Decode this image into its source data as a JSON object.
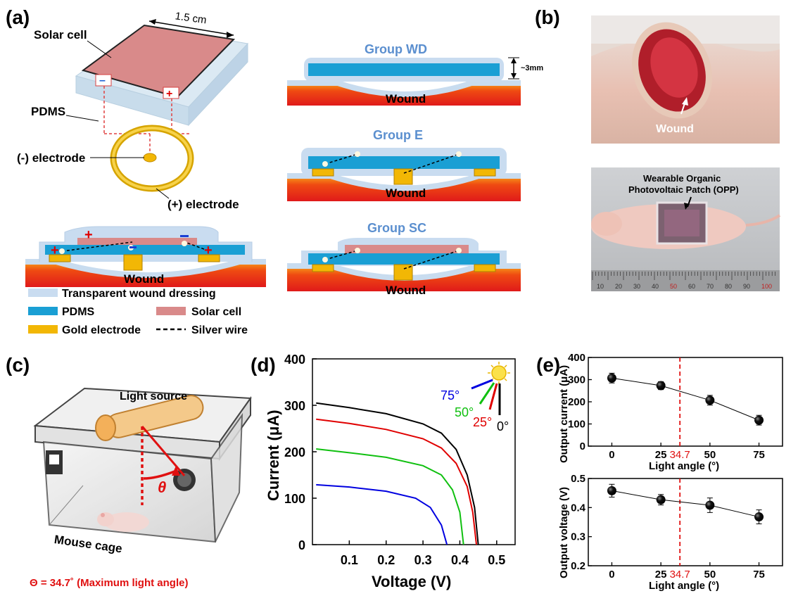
{
  "panel_labels": {
    "a": "(a)",
    "b": "(b)",
    "c": "(c)",
    "d": "(d)",
    "e": "(e)"
  },
  "panel_a": {
    "dimension": "1.5 cm",
    "solar_cell": "Solar cell",
    "pdms": "PDMS",
    "neg_electrode": "(-) electrode",
    "pos_electrode": "(+) electrode",
    "wound": "Wound",
    "groups": [
      {
        "name": "Group WD",
        "thickness": "~3mm",
        "wound": "Wound"
      },
      {
        "name": "Group E",
        "wound": "Wound"
      },
      {
        "name": "Group SC",
        "wound": "Wound"
      }
    ],
    "legend": {
      "dressing": "Transparent wound dressing",
      "pdms": "PDMS",
      "solar": "Solar cell",
      "gold": "Gold electrode",
      "silver": "Silver wire"
    },
    "colors": {
      "dressing": "#c9dcf0",
      "pdms": "#1a9fd4",
      "solar": "#d98a8a",
      "gold": "#f2b705",
      "tissue": "#e8231a"
    }
  },
  "panel_b": {
    "wound_label": "Wound",
    "patch_label_1": "Wearable Organic",
    "patch_label_2": "Photovoltaic Patch (OPP)",
    "ruler_marks": [
      "10",
      "20",
      "30",
      "40",
      "50",
      "60",
      "70",
      "80",
      "90",
      "100"
    ]
  },
  "panel_c": {
    "light_source": "Light source",
    "theta": "θ",
    "cage": "Mouse cage",
    "caption": "Θ = 34.7˚ (Maximum light angle)"
  },
  "chart_data": [
    {
      "type": "line",
      "ylabel": "Current (μA)",
      "xlabel": "Voltage (V)",
      "xlim": [
        0.0,
        0.55
      ],
      "ylim": [
        0,
        400
      ],
      "xticks": [
        "0.1",
        "0.2",
        "0.3",
        "0.4",
        "0.5"
      ],
      "yticks": [
        "0",
        "100",
        "200",
        "300",
        "400"
      ],
      "legend": [
        "75°",
        "50°",
        "25°",
        "0°"
      ],
      "series": [
        {
          "name": "0°",
          "color": "#000000",
          "x": [
            0.01,
            0.1,
            0.2,
            0.3,
            0.35,
            0.39,
            0.42,
            0.44,
            0.45
          ],
          "y": [
            305,
            295,
            282,
            260,
            240,
            205,
            150,
            80,
            0
          ]
        },
        {
          "name": "25°",
          "color": "#e00000",
          "x": [
            0.01,
            0.1,
            0.2,
            0.3,
            0.35,
            0.39,
            0.42,
            0.435,
            0.445
          ],
          "y": [
            270,
            261,
            248,
            228,
            208,
            175,
            125,
            70,
            0
          ]
        },
        {
          "name": "50°",
          "color": "#10c010",
          "x": [
            0.01,
            0.1,
            0.2,
            0.3,
            0.35,
            0.38,
            0.4,
            0.41
          ],
          "y": [
            206,
            198,
            188,
            170,
            150,
            118,
            70,
            0
          ]
        },
        {
          "name": "75°",
          "color": "#0000e0",
          "x": [
            0.01,
            0.1,
            0.2,
            0.28,
            0.32,
            0.35,
            0.365
          ],
          "y": [
            129,
            124,
            115,
            100,
            80,
            42,
            0
          ]
        }
      ]
    },
    {
      "type": "scatter",
      "ylabel": "Output current (μA)",
      "xlabel": "Light angle (°)",
      "xlim": [
        -12,
        87
      ],
      "ylim": [
        0,
        400
      ],
      "xticks": [
        "0",
        "25",
        "50",
        "75"
      ],
      "yticks": [
        "0",
        "100",
        "200",
        "300",
        "400"
      ],
      "marker_line": "34.7",
      "x": [
        0,
        25,
        50,
        75
      ],
      "y": [
        307,
        273,
        207,
        117
      ],
      "err": [
        22,
        18,
        22,
        22
      ]
    },
    {
      "type": "scatter",
      "ylabel": "Output voltage (V)",
      "xlabel": "Light angle (°)",
      "xlim": [
        -12,
        87
      ],
      "ylim": [
        0.2,
        0.5
      ],
      "xticks": [
        "0",
        "25",
        "50",
        "75"
      ],
      "yticks": [
        "0.2",
        "0.3",
        "0.4",
        "0.5"
      ],
      "marker_line": "34.7",
      "x": [
        0,
        25,
        50,
        75
      ],
      "y": [
        0.458,
        0.427,
        0.408,
        0.368
      ],
      "err": [
        0.022,
        0.018,
        0.025,
        0.024
      ]
    }
  ]
}
